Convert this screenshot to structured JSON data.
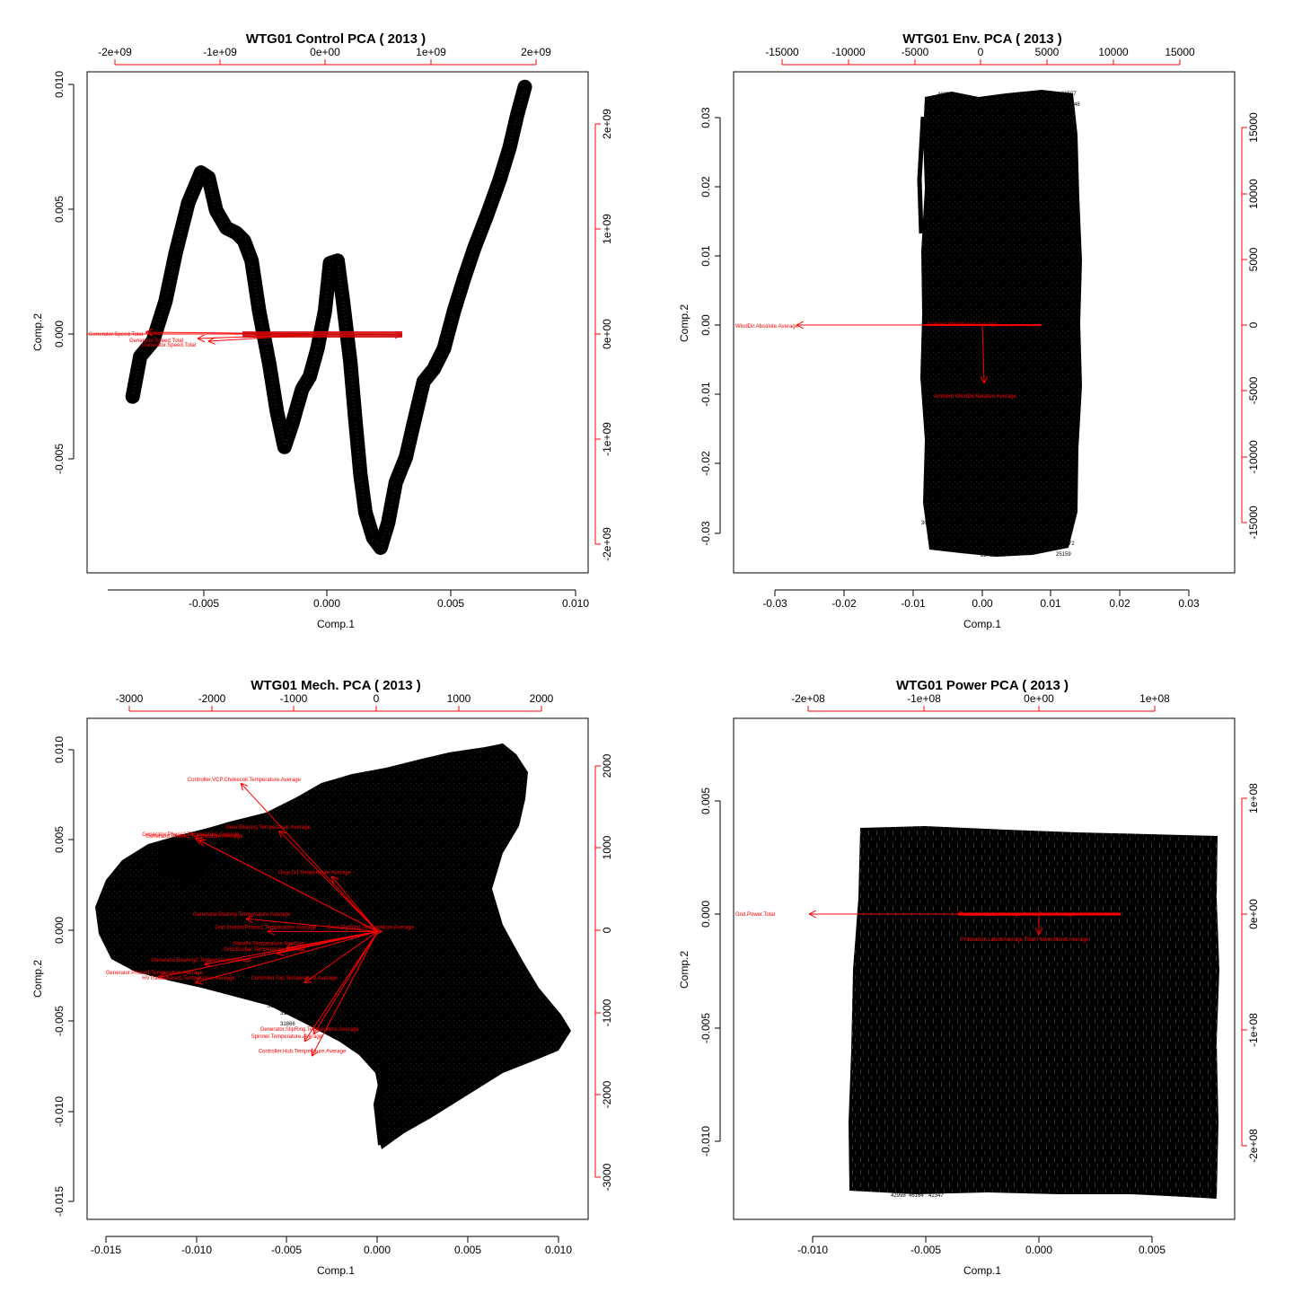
{
  "chart_data": [
    {
      "type": "scatter",
      "subtype": "biplot",
      "title": "WTG01 Control PCA ( 2013 )",
      "xlabel": "Comp.1",
      "ylabel": "Comp.2",
      "xlim": [
        -0.0097,
        0.0101
      ],
      "ylim": [
        -0.0099,
        0.01
      ],
      "x_ticks": [
        "-0.005",
        "0.000",
        "0.005",
        "0.010"
      ],
      "y_ticks": [
        "-0.005",
        "0.000",
        "0.005",
        "0.010"
      ],
      "top_ticks": [
        "-2e+09",
        "-1e+09",
        "0e+00",
        "1e+09",
        "2e+09"
      ],
      "right_ticks": [
        "-2e+09",
        "-1e+09",
        "0e+00",
        "1e+09",
        "2e+09"
      ],
      "loading_scale": [
        -2300000000.0,
        2350000000.0
      ],
      "trace": [
        [
          -0.0079,
          -0.0029
        ],
        [
          -0.0076,
          -0.0013
        ],
        [
          -0.0071,
          -0.0007
        ],
        [
          -0.0066,
          0.0009
        ],
        [
          -0.0062,
          0.0028
        ],
        [
          -0.0057,
          0.0048
        ],
        [
          -0.0052,
          0.006
        ],
        [
          -0.0049,
          0.0058
        ],
        [
          -0.0046,
          0.0045
        ],
        [
          -0.0042,
          0.0038
        ],
        [
          -0.0038,
          0.0036
        ],
        [
          -0.0035,
          0.0033
        ],
        [
          -0.0032,
          0.0025
        ],
        [
          -0.0029,
          0.0005
        ],
        [
          -0.0025,
          -0.0016
        ],
        [
          -0.0022,
          -0.0035
        ],
        [
          -0.0019,
          -0.0049
        ],
        [
          -0.0016,
          -0.004
        ],
        [
          -0.0012,
          -0.0026
        ],
        [
          -0.0009,
          -0.0021
        ],
        [
          -0.0006,
          -0.001
        ],
        [
          -0.0003,
          0.0005
        ],
        [
          -0.0001,
          0.0024
        ],
        [
          0.0002,
          0.0025
        ],
        [
          0.0004,
          0.001
        ],
        [
          0.0007,
          -0.0015
        ],
        [
          0.0009,
          -0.0038
        ],
        [
          0.0011,
          -0.006
        ],
        [
          0.0013,
          -0.0075
        ],
        [
          0.0016,
          -0.0085
        ],
        [
          0.0019,
          -0.0089
        ],
        [
          0.0022,
          -0.0079
        ],
        [
          0.0025,
          -0.0063
        ],
        [
          0.0029,
          -0.0053
        ],
        [
          0.0032,
          -0.004
        ],
        [
          0.0036,
          -0.0023
        ],
        [
          0.004,
          -0.0018
        ],
        [
          0.0044,
          -0.001
        ],
        [
          0.0048,
          0.0005
        ],
        [
          0.0052,
          0.0018
        ],
        [
          0.0056,
          0.003
        ],
        [
          0.0061,
          0.0043
        ],
        [
          0.0066,
          0.0057
        ],
        [
          0.007,
          0.007
        ],
        [
          0.0073,
          0.0083
        ],
        [
          0.0076,
          0.0094
        ]
      ],
      "loadings": [
        {
          "name": "Generator.Speed.Total",
          "x": -2170000000.0,
          "y": -50000000.0
        },
        {
          "name": "Generator.Speed.Total",
          "x": -1350000000.0,
          "y": -50000000.0
        },
        {
          "name": "",
          "x": 750000000.0,
          "y": 0.0
        }
      ]
    },
    {
      "type": "scatter",
      "subtype": "biplot",
      "title": "WTG01 Env. PCA ( 2013 )",
      "xlabel": "Comp.1",
      "ylabel": "Comp.2",
      "xlim": [
        -0.037,
        0.037
      ],
      "ylim": [
        -0.0357,
        0.0363
      ],
      "x_ticks": [
        "-0.03",
        "-0.02",
        "-0.01",
        "0.00",
        "0.01",
        "0.02",
        "0.03"
      ],
      "y_ticks": [
        "-0.03",
        "-0.02",
        "-0.01",
        "0.00",
        "0.01",
        "0.02",
        "0.03"
      ],
      "top_ticks": [
        "-15000",
        "-10000",
        "-5000",
        "0",
        "5000",
        "10000",
        "15000"
      ],
      "right_ticks": [
        "-15000",
        "-10000",
        "-5000",
        "0",
        "5000",
        "10000",
        "15000"
      ],
      "cloud_x": [
        -0.009,
        0.014
      ],
      "cloud_y": [
        -0.033,
        0.034
      ],
      "loadings": [
        {
          "name": "WindDir.Absolute.Average",
          "x": -27000,
          "y": 0
        },
        {
          "name": "Ambient.WindDir.Relative.Average",
          "x": 300,
          "y": -4300
        },
        {
          "name": "Ambient.WindSpeed.Average",
          "x": 4500,
          "y": 0
        }
      ],
      "obs_labels": [
        "40254",
        "26507",
        "24048",
        "10997",
        "25943",
        "22634",
        "30582",
        "25159",
        "25760",
        "42272"
      ]
    },
    {
      "type": "scatter",
      "subtype": "biplot",
      "title": "WTG01 Mech. PCA ( 2013 )",
      "xlabel": "Comp.1",
      "ylabel": "Comp.2",
      "xlim": [
        -0.016,
        0.0116
      ],
      "ylim": [
        -0.0158,
        0.0117
      ],
      "x_ticks": [
        "-0.015",
        "-0.010",
        "-0.005",
        "0.000",
        "0.005",
        "0.010"
      ],
      "y_ticks": [
        "-0.015",
        "-0.010",
        "-0.005",
        "0.000",
        "0.005",
        "0.010"
      ],
      "top_ticks": [
        "-3000",
        "-2000",
        "-1000",
        "0",
        "1000",
        "2000"
      ],
      "right_ticks": [
        "-3000",
        "-2000",
        "-1000",
        "0",
        "1000",
        "2000"
      ],
      "loadings": [
        {
          "name": "Controller.VCP.Chokecoil.Temperature.Average",
          "x": -0.0075,
          "y": 0.0081
        },
        {
          "name": "Generator.Phase2.Temperature.Average",
          "x": -0.01,
          "y": 0.0051
        },
        {
          "name": "Generator.Phase1.Temperature.Average",
          "x": -0.0098,
          "y": 0.005
        },
        {
          "name": "Gear.Bearing.Temperature.Average",
          "x": -0.0054,
          "y": 0.0055
        },
        {
          "name": "Gear.Oil.Temperature.Average",
          "x": -0.0025,
          "y": 0.003
        },
        {
          "name": "Generator.Bearing.Temperature.Average",
          "x": -0.0072,
          "y": 0.0007
        },
        {
          "name": "Grid.InverterPhase1.Temperature.Average",
          "x": -0.006,
          "y": 0.0
        },
        {
          "name": "Nacelle.Temperature.Average",
          "x": -0.005,
          "y": -0.0009
        },
        {
          "name": "Grid.Busbar.Temperature.Average",
          "x": -0.0055,
          "y": -0.0012
        },
        {
          "name": "Generator.Bearing2.Temperature.Average",
          "x": -0.0095,
          "y": -0.0018
        },
        {
          "name": "Generator.Phase3.Temperature.Average",
          "x": -0.012,
          "y": -0.0025
        },
        {
          "name": "Controller.Top.Temperature.Average",
          "x": -0.004,
          "y": -0.0028
        },
        {
          "name": "Controller.Hub.Temperature.Average",
          "x": -0.0036,
          "y": -0.0068
        },
        {
          "name": "Generator.SlipRing.Temperature.Average",
          "x": -0.0035,
          "y": -0.0056
        },
        {
          "name": "Spinner.Temperature.Average",
          "x": -0.004,
          "y": -0.006
        },
        {
          "name": "HVTrafo.Phase1.Temperature.Average",
          "x": -0.01,
          "y": -0.0028
        },
        {
          "name": "Gear.SlipRing.Temperature.Average",
          "x": 0.0002,
          "y": 0.0
        }
      ],
      "obs_labels": [
        "31791",
        "31866",
        "31702"
      ]
    },
    {
      "type": "scatter",
      "subtype": "biplot",
      "title": "WTG01 Power PCA ( 2013 )",
      "xlabel": "Comp.1",
      "ylabel": "Comp.2",
      "xlim": [
        -0.0135,
        0.0087
      ],
      "ylim": [
        -0.0135,
        0.0087
      ],
      "x_ticks": [
        "-0.010",
        "-0.005",
        "0.000",
        "0.005"
      ],
      "y_ticks": [
        "-0.010",
        "-0.005",
        "0.000",
        "0.005"
      ],
      "top_ticks": [
        "-2e+08",
        "-1e+08",
        "0e+00",
        "1e+08"
      ],
      "right_ticks": [
        "-2e+08",
        "-1e+08",
        "0e+00",
        "1e+08"
      ],
      "cloud_x": [
        -0.0083,
        0.0079
      ],
      "cloud_y": [
        -0.0122,
        0.0037
      ],
      "loadings": [
        {
          "name": "Grid.Power.Total",
          "x": -200000000.0,
          "y": 0.0
        },
        {
          "name": "Production.LatestAverage.Total.Power.Blend.Average",
          "x": 0.0,
          "y": -16000000.0
        },
        {
          "name": "Production.LatestAverage.Active.Power.Average",
          "x": 70000000.0,
          "y": 0.0
        }
      ],
      "obs_labels": [
        "42998",
        "46164",
        "42347"
      ]
    }
  ]
}
